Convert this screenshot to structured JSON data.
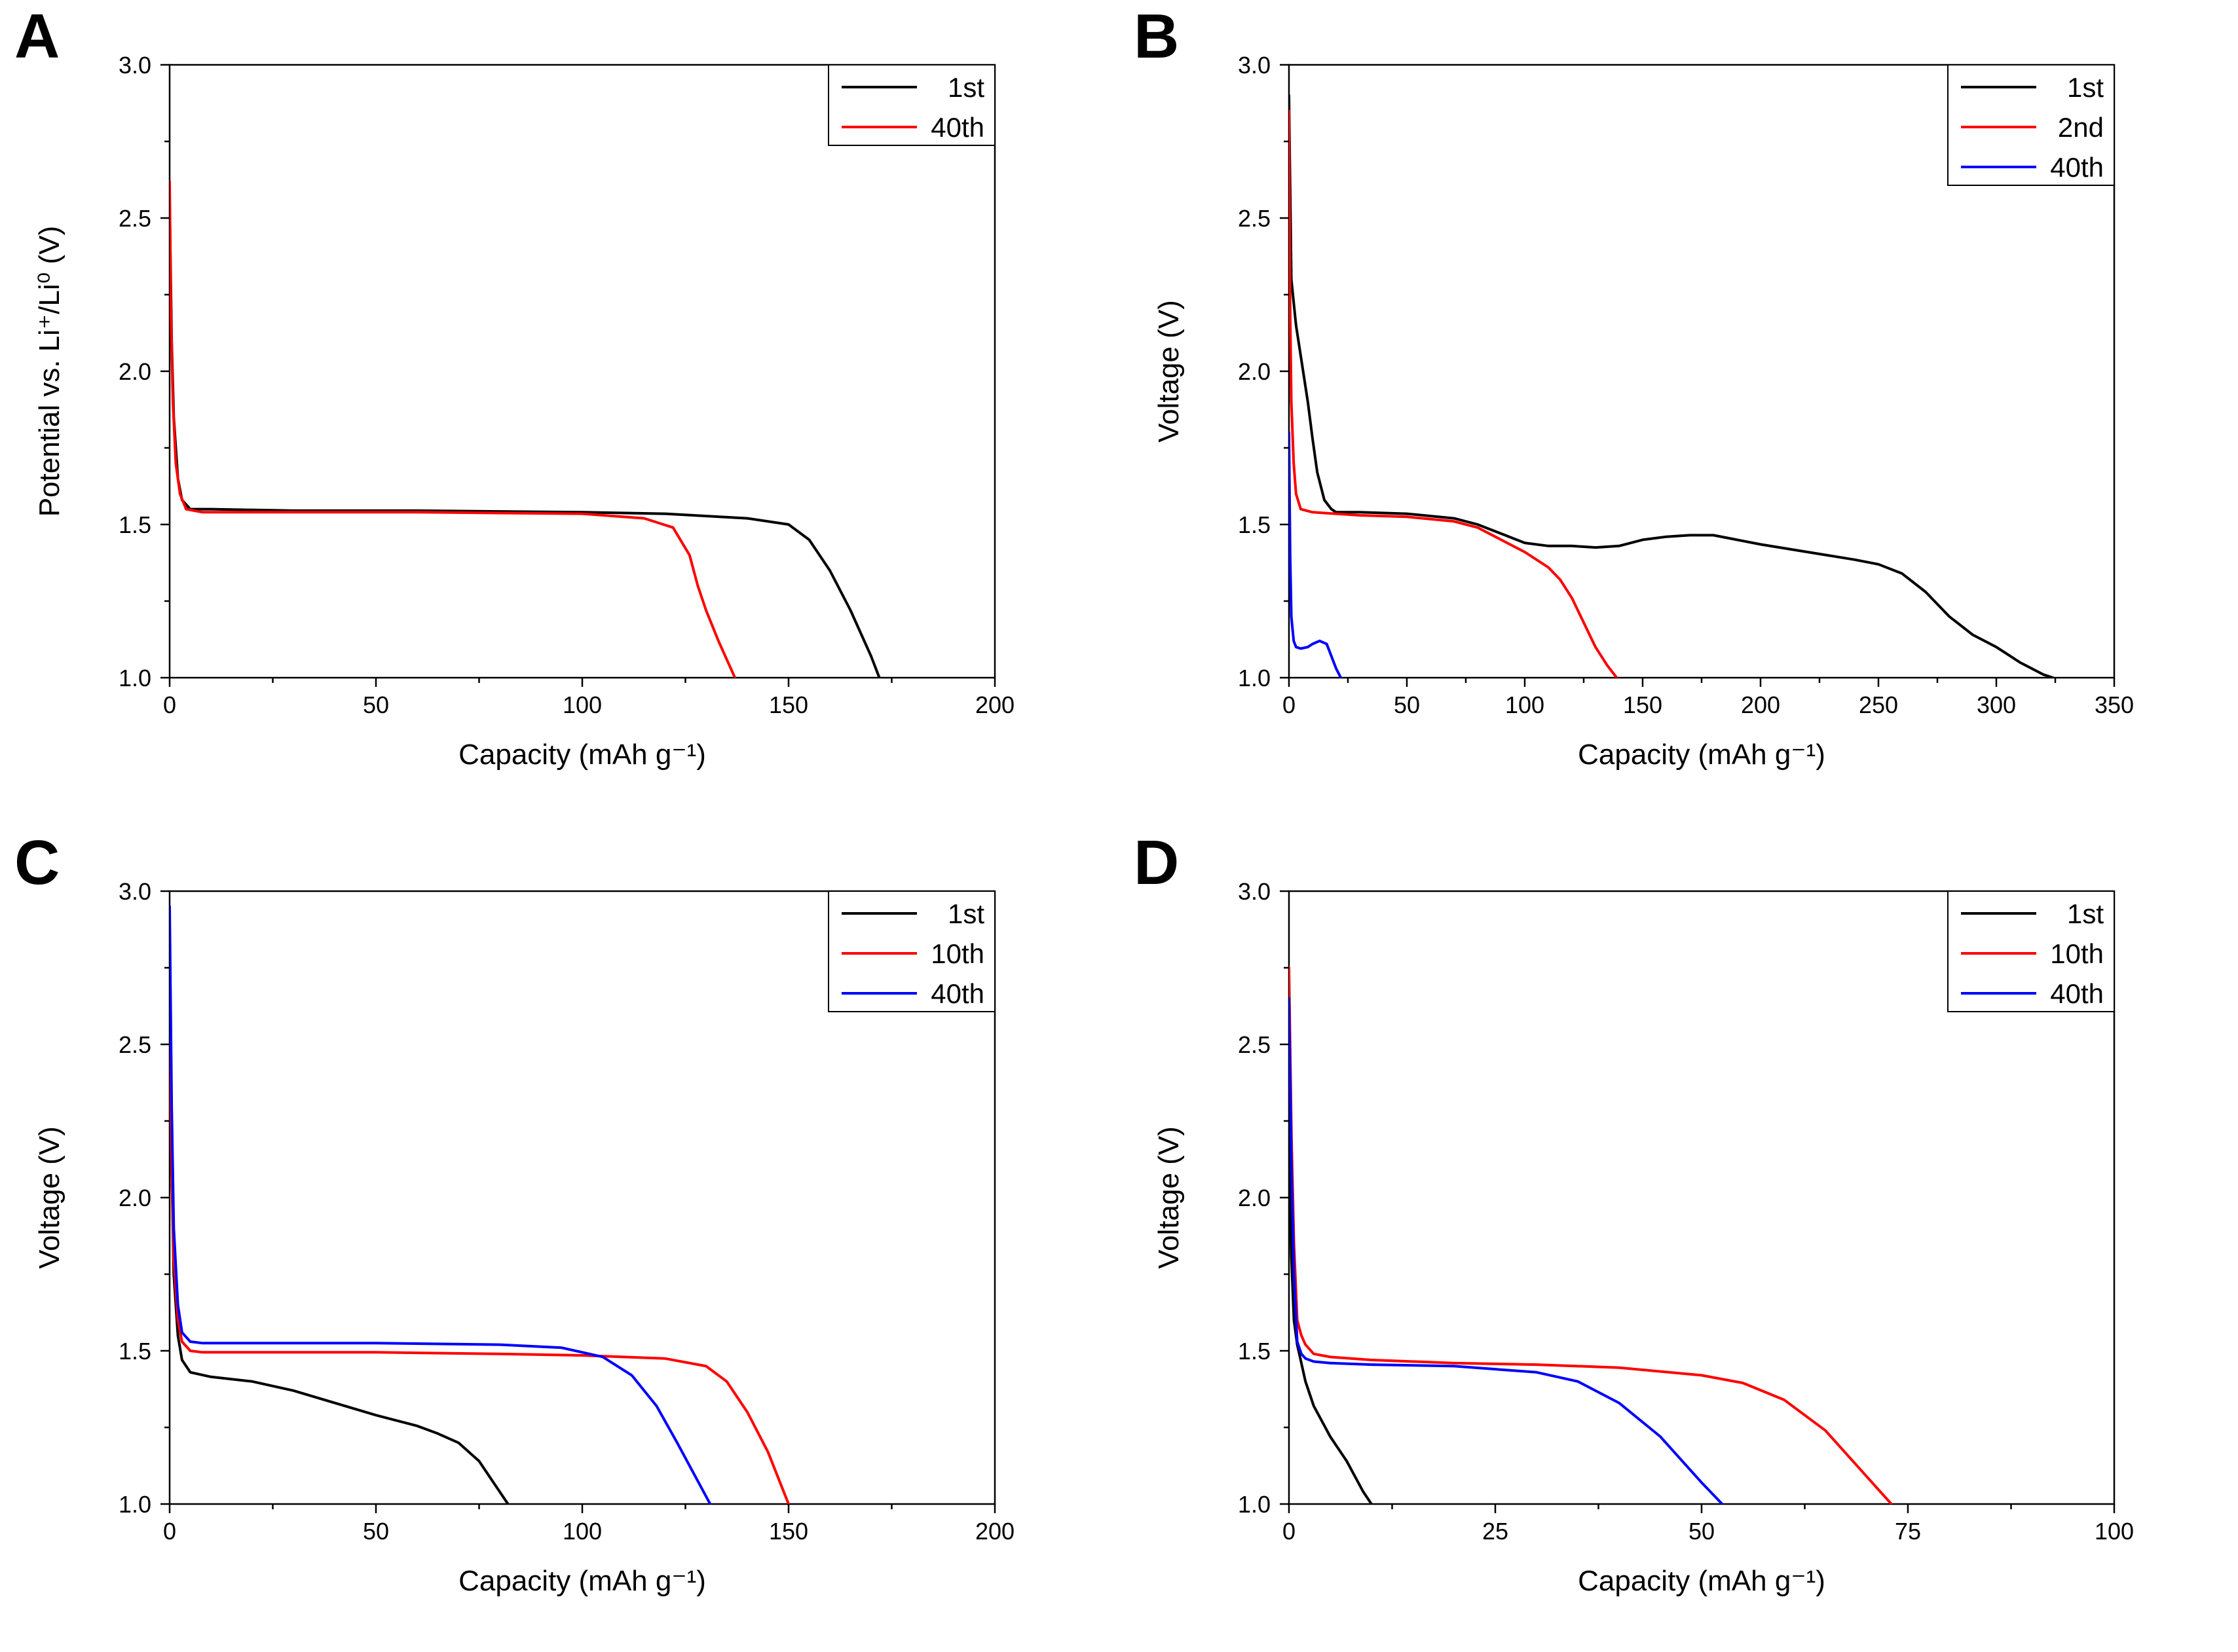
{
  "chart_data": [
    {
      "panel_letter": "A",
      "type": "line",
      "title": "",
      "xlabel": "Capacity (mAh g⁻¹)",
      "ylabel": "Potential vs. Li⁺/Li⁰ (V)",
      "xlim": [
        0,
        200
      ],
      "ylim": [
        1.0,
        3.0
      ],
      "x_ticks": [
        0,
        50,
        100,
        150,
        200
      ],
      "y_ticks": [
        1.0,
        1.5,
        2.0,
        2.5,
        3.0
      ],
      "x_tick_labels": [
        "0",
        "50",
        "100",
        "150",
        "200"
      ],
      "y_tick_labels": [
        "1.0",
        "1.5",
        "2.0",
        "2.5",
        "3.0"
      ],
      "grid": false,
      "legend_position": "top-right",
      "series": [
        {
          "name": "1st",
          "color": "#000000",
          "x": [
            0,
            0.5,
            1,
            2,
            3,
            5,
            10,
            30,
            60,
            100,
            120,
            140,
            150,
            155,
            160,
            165,
            170,
            172
          ],
          "y": [
            2.55,
            2.1,
            1.85,
            1.65,
            1.58,
            1.55,
            1.55,
            1.545,
            1.545,
            1.54,
            1.535,
            1.52,
            1.5,
            1.45,
            1.35,
            1.22,
            1.07,
            1.0
          ]
        },
        {
          "name": "40th",
          "color": "#ff0000",
          "x": [
            0,
            0.3,
            0.8,
            1.5,
            2.5,
            4,
            8,
            30,
            60,
            100,
            115,
            122,
            126,
            128,
            130,
            133,
            137
          ],
          "y": [
            2.62,
            2.2,
            1.9,
            1.7,
            1.6,
            1.55,
            1.54,
            1.54,
            1.54,
            1.535,
            1.52,
            1.49,
            1.4,
            1.3,
            1.22,
            1.12,
            1.0
          ]
        }
      ]
    },
    {
      "panel_letter": "B",
      "type": "line",
      "title": "",
      "xlabel": "Capacity (mAh g⁻¹)",
      "ylabel": "Voltage (V)",
      "xlim": [
        0,
        350
      ],
      "ylim": [
        1.0,
        3.0
      ],
      "x_ticks": [
        0,
        50,
        100,
        150,
        200,
        250,
        300,
        350
      ],
      "y_ticks": [
        1.0,
        1.5,
        2.0,
        2.5,
        3.0
      ],
      "x_tick_labels": [
        "0",
        "50",
        "100",
        "150",
        "200",
        "250",
        "300",
        "350"
      ],
      "y_tick_labels": [
        "1.0",
        "1.5",
        "2.0",
        "2.5",
        "3.0"
      ],
      "grid": false,
      "legend_position": "top-right",
      "series": [
        {
          "name": "1st",
          "color": "#000000",
          "x": [
            0,
            1,
            3,
            5,
            8,
            10,
            12,
            15,
            18,
            20,
            30,
            50,
            70,
            80,
            90,
            100,
            110,
            120,
            130,
            140,
            150,
            160,
            170,
            180,
            190,
            200,
            220,
            240,
            250,
            260,
            270,
            280,
            290,
            300,
            310,
            320,
            324
          ],
          "y": [
            2.9,
            2.3,
            2.15,
            2.05,
            1.9,
            1.78,
            1.67,
            1.58,
            1.55,
            1.54,
            1.54,
            1.535,
            1.52,
            1.5,
            1.47,
            1.44,
            1.43,
            1.43,
            1.425,
            1.43,
            1.45,
            1.46,
            1.465,
            1.465,
            1.45,
            1.435,
            1.41,
            1.385,
            1.37,
            1.34,
            1.28,
            1.2,
            1.14,
            1.1,
            1.05,
            1.01,
            1.0
          ]
        },
        {
          "name": "2nd",
          "color": "#ff0000",
          "x": [
            0,
            0.5,
            1,
            2,
            3,
            5,
            10,
            30,
            50,
            70,
            80,
            90,
            100,
            110,
            115,
            120,
            125,
            130,
            135,
            139
          ],
          "y": [
            2.85,
            2.2,
            1.9,
            1.7,
            1.6,
            1.55,
            1.54,
            1.53,
            1.525,
            1.51,
            1.49,
            1.45,
            1.41,
            1.36,
            1.32,
            1.26,
            1.18,
            1.1,
            1.04,
            1.0
          ]
        },
        {
          "name": "40th",
          "color": "#0000ff",
          "x": [
            0,
            0.5,
            1,
            2,
            3,
            5,
            8,
            10,
            13,
            16,
            18,
            20,
            22
          ],
          "y": [
            1.8,
            1.4,
            1.2,
            1.12,
            1.1,
            1.095,
            1.1,
            1.11,
            1.12,
            1.11,
            1.07,
            1.03,
            1.0
          ]
        }
      ]
    },
    {
      "panel_letter": "C",
      "type": "line",
      "title": "",
      "xlabel": "Capacity (mAh g⁻¹)",
      "ylabel": "Voltage (V)",
      "xlim": [
        0,
        200
      ],
      "ylim": [
        1.0,
        3.0
      ],
      "x_ticks": [
        0,
        50,
        100,
        150,
        200
      ],
      "y_ticks": [
        1.0,
        1.5,
        2.0,
        2.5,
        3.0
      ],
      "x_tick_labels": [
        "0",
        "50",
        "100",
        "150",
        "200"
      ],
      "y_tick_labels": [
        "1.0",
        "1.5",
        "2.0",
        "2.5",
        "3.0"
      ],
      "grid": false,
      "legend_position": "top-right",
      "series": [
        {
          "name": "1st",
          "color": "#000000",
          "x": [
            0,
            0.5,
            1,
            2,
            3,
            5,
            10,
            20,
            30,
            40,
            50,
            60,
            65,
            70,
            75,
            78,
            82
          ],
          "y": [
            2.75,
            2.1,
            1.75,
            1.55,
            1.47,
            1.43,
            1.415,
            1.4,
            1.37,
            1.33,
            1.29,
            1.255,
            1.23,
            1.2,
            1.14,
            1.08,
            1.0
          ]
        },
        {
          "name": "10th",
          "color": "#ff0000",
          "x": [
            0,
            0.5,
            1,
            2,
            3,
            5,
            8,
            20,
            50,
            80,
            100,
            120,
            130,
            135,
            140,
            145,
            150
          ],
          "y": [
            2.6,
            2.1,
            1.8,
            1.6,
            1.53,
            1.5,
            1.495,
            1.495,
            1.495,
            1.49,
            1.485,
            1.475,
            1.45,
            1.4,
            1.3,
            1.17,
            1.0
          ]
        },
        {
          "name": "40th",
          "color": "#0000ff",
          "x": [
            0,
            0.5,
            1,
            2,
            3,
            5,
            8,
            20,
            50,
            80,
            95,
            105,
            112,
            118,
            123,
            127,
            131
          ],
          "y": [
            2.95,
            2.3,
            1.9,
            1.65,
            1.56,
            1.53,
            1.525,
            1.525,
            1.525,
            1.52,
            1.51,
            1.48,
            1.42,
            1.32,
            1.2,
            1.1,
            1.0
          ]
        }
      ]
    },
    {
      "panel_letter": "D",
      "type": "line",
      "title": "",
      "xlabel": "Capacity (mAh g⁻¹)",
      "ylabel": "Voltage (V)",
      "xlim": [
        0,
        100
      ],
      "ylim": [
        1.0,
        3.0
      ],
      "x_ticks": [
        0,
        25,
        50,
        75,
        100
      ],
      "y_ticks": [
        1.0,
        1.5,
        2.0,
        2.5,
        3.0
      ],
      "x_tick_labels": [
        "0",
        "25",
        "50",
        "75",
        "100"
      ],
      "y_tick_labels": [
        "1.0",
        "1.5",
        "2.0",
        "2.5",
        "3.0"
      ],
      "grid": false,
      "legend_position": "top-right",
      "series": [
        {
          "name": "1st",
          "color": "#000000",
          "x": [
            0,
            0.3,
            0.6,
            1,
            1.5,
            2,
            3,
            4,
            5,
            6,
            7,
            8,
            9,
            10
          ],
          "y": [
            2.2,
            1.8,
            1.6,
            1.52,
            1.46,
            1.4,
            1.32,
            1.27,
            1.22,
            1.18,
            1.14,
            1.09,
            1.04,
            1.0
          ]
        },
        {
          "name": "10th",
          "color": "#ff0000",
          "x": [
            0,
            0.3,
            0.6,
            1,
            1.5,
            2,
            3,
            5,
            10,
            20,
            30,
            40,
            50,
            55,
            60,
            65,
            68,
            70,
            73
          ],
          "y": [
            2.75,
            2.2,
            1.85,
            1.6,
            1.55,
            1.52,
            1.49,
            1.48,
            1.47,
            1.46,
            1.455,
            1.445,
            1.42,
            1.395,
            1.34,
            1.24,
            1.15,
            1.09,
            1.0
          ]
        },
        {
          "name": "40th",
          "color": "#0000ff",
          "x": [
            0,
            0.3,
            0.6,
            1,
            1.5,
            2,
            3,
            5,
            10,
            20,
            30,
            35,
            40,
            45,
            48,
            50,
            52.5
          ],
          "y": [
            2.65,
            2.1,
            1.75,
            1.53,
            1.49,
            1.475,
            1.465,
            1.46,
            1.455,
            1.45,
            1.43,
            1.4,
            1.33,
            1.22,
            1.13,
            1.07,
            1.0
          ]
        }
      ]
    }
  ]
}
